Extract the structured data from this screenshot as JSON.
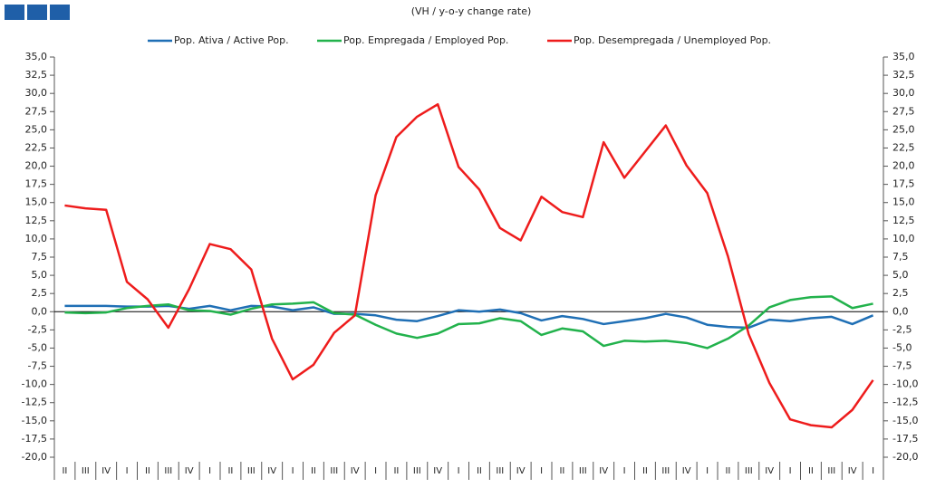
{
  "chart_data": {
    "type": "line",
    "subtitle": "(VH / y-o-y change rate)",
    "categories": [
      "II",
      "III",
      "IV",
      "I",
      "II",
      "III",
      "IV",
      "I",
      "II",
      "III",
      "IV",
      "I",
      "II",
      "III",
      "IV",
      "I",
      "II",
      "III",
      "IV",
      "I",
      "II",
      "III",
      "IV",
      "I",
      "II",
      "III",
      "IV",
      "I",
      "II",
      "III",
      "IV",
      "I",
      "II",
      "III",
      "IV",
      "I",
      "II",
      "III",
      "IV",
      "I"
    ],
    "series": [
      {
        "name": "Pop. Ativa / Active Pop.",
        "color": "#1f6fb5",
        "values": [
          0.8,
          0.8,
          0.8,
          0.7,
          0.7,
          0.8,
          0.4,
          0.8,
          0.2,
          0.8,
          0.7,
          0.2,
          0.6,
          -0.3,
          -0.3,
          -0.5,
          -1.1,
          -1.3,
          -0.6,
          0.2,
          0.0,
          0.3,
          -0.2,
          -1.2,
          -0.6,
          -1.0,
          -1.7,
          -1.3,
          -0.9,
          -0.3,
          -0.8,
          -1.8,
          -2.1,
          -2.2,
          -1.1,
          -1.3,
          -0.9,
          -0.7,
          -1.7,
          -0.5
        ]
      },
      {
        "name": "Pop. Empregada / Employed Pop.",
        "color": "#22b24c",
        "values": [
          -0.1,
          -0.2,
          -0.1,
          0.5,
          0.8,
          1.0,
          0.2,
          0.1,
          -0.4,
          0.4,
          1.0,
          1.1,
          1.3,
          -0.2,
          -0.4,
          -1.8,
          -3.0,
          -3.6,
          -3.0,
          -1.7,
          -1.6,
          -0.9,
          -1.3,
          -3.2,
          -2.3,
          -2.7,
          -4.7,
          -4.0,
          -4.1,
          -4.0,
          -4.3,
          -5.0,
          -3.7,
          -1.9,
          0.6,
          1.6,
          2.0,
          2.1,
          0.5,
          1.1
        ]
      },
      {
        "name": "Pop. Desempregada / Unemployed Pop.",
        "color": "#ee1c1c",
        "values": [
          14.6,
          14.2,
          14.0,
          4.1,
          1.7,
          -2.2,
          3.1,
          9.3,
          8.6,
          5.8,
          -3.7,
          -9.3,
          -7.3,
          -2.9,
          -0.5,
          16.0,
          24.0,
          26.8,
          28.5,
          19.9,
          16.8,
          11.5,
          9.8,
          15.8,
          13.7,
          13.0,
          23.3,
          18.4,
          22.0,
          25.6,
          20.1,
          16.3,
          7.6,
          -3.1,
          -9.8,
          -14.8,
          -15.6,
          -15.9,
          -13.5,
          -9.4
        ]
      }
    ],
    "ylim": [
      -20,
      35
    ],
    "yticks": [
      {
        "value": 35,
        "label": "35,0"
      },
      {
        "value": 32.5,
        "label": "32,5"
      },
      {
        "value": 30,
        "label": "30,0"
      },
      {
        "value": 27.5,
        "label": "27,5"
      },
      {
        "value": 25,
        "label": "25,0"
      },
      {
        "value": 22.5,
        "label": "22,5"
      },
      {
        "value": 20,
        "label": "20,0"
      },
      {
        "value": 17.5,
        "label": "17,5"
      },
      {
        "value": 15,
        "label": "15,0"
      },
      {
        "value": 12.5,
        "label": "12,5"
      },
      {
        "value": 10,
        "label": "10,0"
      },
      {
        "value": 7.5,
        "label": "7,5"
      },
      {
        "value": 5,
        "label": "5,0"
      },
      {
        "value": 2.5,
        "label": "2,5"
      },
      {
        "value": 0,
        "label": "0,0"
      },
      {
        "value": -2.5,
        "label": "-2,5"
      },
      {
        "value": -5,
        "label": "-5,0"
      },
      {
        "value": -7.5,
        "label": "-7,5"
      },
      {
        "value": -10,
        "label": "-10,0"
      },
      {
        "value": -12.5,
        "label": "-12,5"
      },
      {
        "value": -15,
        "label": "-15,0"
      },
      {
        "value": -17.5,
        "label": "-17,5"
      },
      {
        "value": -20,
        "label": "-20,0"
      }
    ],
    "legend": "top"
  }
}
